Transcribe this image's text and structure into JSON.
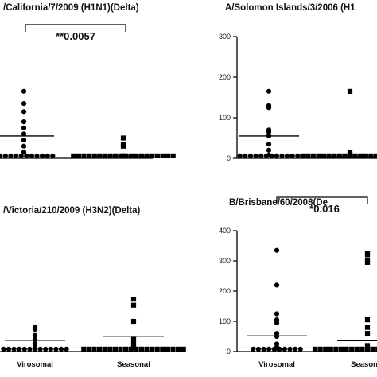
{
  "chart_data": [
    {
      "type": "scatter",
      "title": "/California/7/2009 (H1N1)(Delta)",
      "categories": [
        "Virosomal",
        "Seasonal"
      ],
      "ylim": [
        0,
        300
      ],
      "yticks": [],
      "significance": "**0.0057",
      "series": [
        {
          "category": "Virosomal",
          "marker": "circle",
          "mean": 55,
          "values": [
            0,
            0,
            0,
            0,
            0,
            0,
            0,
            0,
            0,
            0,
            0,
            0,
            15,
            30,
            45,
            60,
            75,
            90,
            115,
            135,
            165
          ]
        },
        {
          "category": "Seasonal",
          "marker": "square",
          "mean": 6,
          "values": [
            0,
            0,
            0,
            0,
            0,
            0,
            0,
            0,
            0,
            0,
            0,
            0,
            0,
            0,
            0,
            0,
            0,
            0,
            0,
            0,
            2,
            4,
            30,
            35,
            50
          ]
        }
      ]
    },
    {
      "type": "scatter",
      "title": "A/Solomon Islands/3/2006 (H1",
      "categories": [
        "Virosomal",
        "Seasonal"
      ],
      "ylim": [
        0,
        300
      ],
      "yticks": [
        "0",
        "100",
        "200",
        "300"
      ],
      "significance": "",
      "series": [
        {
          "category": "Virosomal",
          "marker": "circle",
          "mean": 55,
          "values": [
            0,
            0,
            0,
            0,
            0,
            0,
            0,
            0,
            0,
            0,
            0,
            0,
            8,
            20,
            35,
            55,
            65,
            70,
            125,
            130,
            165
          ]
        },
        {
          "category": "Seasonal",
          "marker": "square",
          "mean": 5,
          "values": [
            0,
            0,
            0,
            0,
            0,
            0,
            0,
            0,
            0,
            0,
            0,
            0,
            0,
            0,
            0,
            0,
            0,
            0,
            0,
            2,
            4,
            6,
            10,
            15,
            165
          ]
        }
      ]
    },
    {
      "type": "scatter",
      "title": "/Victoria/210/2009 (H3N2)(Delta)",
      "categories": [
        "Virosomal",
        "Seasonal"
      ],
      "ylim": [
        0,
        300
      ],
      "yticks": [],
      "significance": "",
      "series": [
        {
          "category": "Virosomal",
          "marker": "circle",
          "mean": 28,
          "values": [
            0,
            0,
            0,
            0,
            0,
            0,
            0,
            0,
            0,
            0,
            0,
            0,
            0,
            10,
            20,
            30,
            40,
            55,
            60
          ]
        },
        {
          "category": "Seasonal",
          "marker": "square",
          "mean": 38,
          "values": [
            0,
            0,
            0,
            0,
            0,
            0,
            0,
            0,
            0,
            0,
            0,
            0,
            0,
            0,
            0,
            0,
            0,
            0,
            0,
            0,
            10,
            20,
            30,
            75,
            115,
            130
          ]
        }
      ]
    },
    {
      "type": "scatter",
      "title": "B/Brisbane/60/2008(De",
      "categories": [
        "Virosomal",
        "Seasonal"
      ],
      "ylim": [
        0,
        400
      ],
      "yticks": [
        "0",
        "100",
        "200",
        "300",
        "400"
      ],
      "significance": "*0.016",
      "series": [
        {
          "category": "Virosomal",
          "marker": "circle",
          "mean": 52,
          "values": [
            0,
            0,
            0,
            0,
            0,
            0,
            0,
            0,
            0,
            0,
            10,
            15,
            25,
            50,
            60,
            95,
            105,
            125,
            220,
            335
          ]
        },
        {
          "category": "Seasonal",
          "marker": "square",
          "mean": 36,
          "values": [
            0,
            0,
            0,
            0,
            0,
            0,
            0,
            0,
            0,
            0,
            0,
            0,
            0,
            0,
            0,
            0,
            0,
            0,
            0,
            0,
            0,
            20,
            60,
            80,
            105,
            295,
            300,
            320,
            325
          ]
        }
      ]
    }
  ]
}
